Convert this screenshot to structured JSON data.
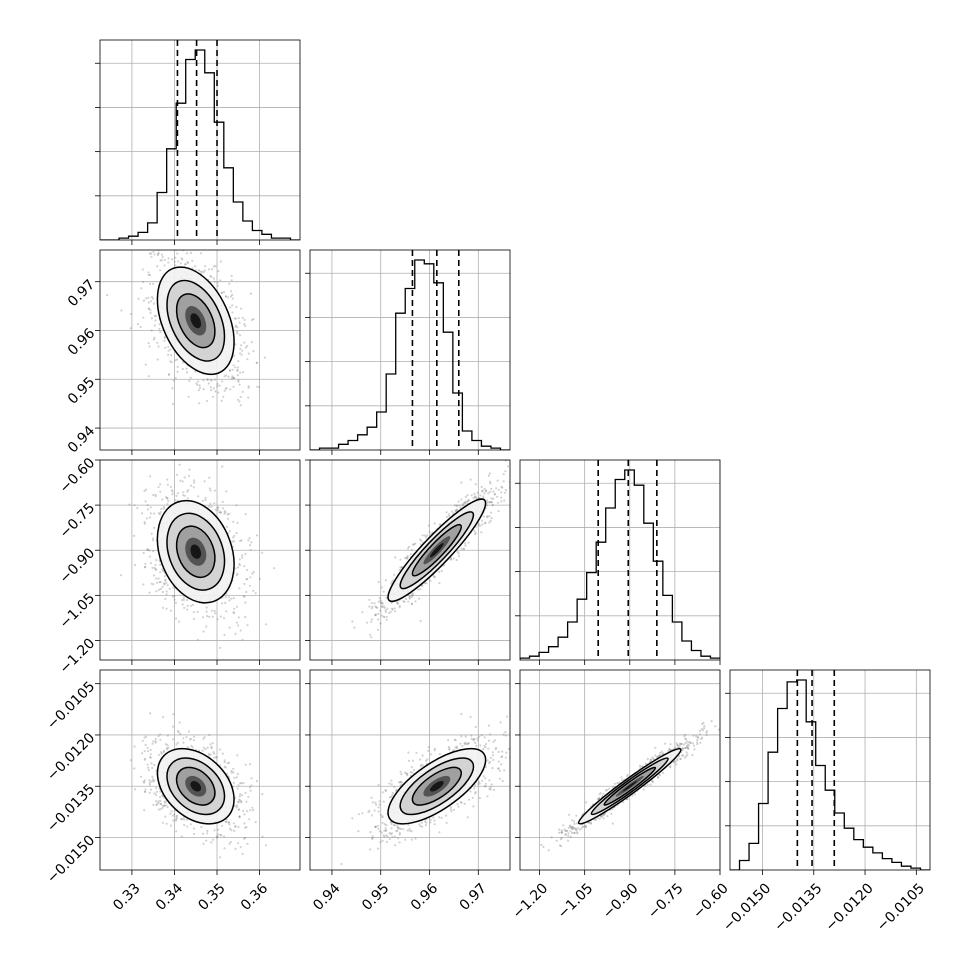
{
  "chart_data": {
    "type": "scatter",
    "title": "",
    "parameters": [
      {
        "index": 0,
        "range": [
          0.3225,
          0.3695
        ],
        "ticks": [
          0.33,
          0.34,
          0.35,
          0.36
        ],
        "tick_labels": [
          "0.33",
          "0.34",
          "0.35",
          "0.36"
        ],
        "quantiles": [
          0.3407,
          0.3452,
          0.35
        ],
        "histogram": [
          0,
          0,
          1,
          2,
          4,
          9,
          25,
          48,
          72,
          95,
          100,
          88,
          62,
          38,
          20,
          10,
          5,
          3,
          1,
          1,
          0
        ]
      },
      {
        "index": 1,
        "range": [
          0.9355,
          0.9765
        ],
        "ticks": [
          0.94,
          0.95,
          0.96,
          0.97
        ],
        "tick_labels": [
          "0.94",
          "0.95",
          "0.96",
          "0.97"
        ],
        "quantiles": [
          0.9565,
          0.9615,
          0.966
        ],
        "histogram": [
          0,
          1,
          1,
          3,
          5,
          8,
          12,
          20,
          40,
          72,
          85,
          100,
          98,
          88,
          62,
          30,
          10,
          5,
          2,
          1,
          0
        ]
      },
      {
        "index": 2,
        "range": [
          -1.265,
          -0.6
        ],
        "ticks": [
          -1.2,
          -1.05,
          -0.9,
          -0.75,
          -0.6
        ],
        "tick_labels": [
          "−1.20",
          "−1.05",
          "−0.90",
          "−0.75",
          "−0.60"
        ],
        "quantiles": [
          -1.005,
          -0.905,
          -0.81
        ],
        "histogram": [
          1,
          2,
          4,
          7,
          12,
          20,
          32,
          46,
          62,
          80,
          95,
          100,
          92,
          72,
          52,
          34,
          20,
          10,
          5,
          2,
          1
        ]
      },
      {
        "index": 3,
        "range": [
          -0.01595,
          -0.0101
        ],
        "ticks": [
          -0.015,
          -0.0135,
          -0.012,
          -0.0105
        ],
        "tick_labels": [
          "−0.0150",
          "−0.0135",
          "−0.0120",
          "−0.0105"
        ],
        "quantiles": [
          -0.01398,
          -0.01355,
          -0.0129
        ],
        "histogram": [
          0,
          5,
          14,
          35,
          62,
          85,
          99,
          100,
          78,
          55,
          42,
          30,
          22,
          16,
          12,
          9,
          6,
          4,
          2,
          1,
          0
        ]
      }
    ],
    "pairs": [
      {
        "x": 0,
        "y": 1,
        "center": [
          0.345,
          0.962
        ],
        "sigma": [
          0.0045,
          0.0055
        ],
        "corr": -0.4
      },
      {
        "x": 0,
        "y": 2,
        "center": [
          0.345,
          -0.905
        ],
        "sigma": [
          0.0045,
          0.085
        ],
        "corr": -0.25
      },
      {
        "x": 1,
        "y": 2,
        "center": [
          0.9615,
          -0.9
        ],
        "sigma": [
          0.005,
          0.085
        ],
        "corr": 0.92
      },
      {
        "x": 0,
        "y": 3,
        "center": [
          0.345,
          -0.0135
        ],
        "sigma": [
          0.0045,
          0.00055
        ],
        "corr": -0.35
      },
      {
        "x": 1,
        "y": 3,
        "center": [
          0.9615,
          -0.0135
        ],
        "sigma": [
          0.005,
          0.00055
        ],
        "corr": 0.7
      },
      {
        "x": 2,
        "y": 3,
        "center": [
          -0.9,
          -0.0135
        ],
        "sigma": [
          0.085,
          0.00055
        ],
        "corr": 0.97
      }
    ],
    "contour_levels_sigma": [
      1,
      1.5,
      2
    ],
    "quantile_line_style": "dashed",
    "grid": true,
    "legend": "none"
  }
}
